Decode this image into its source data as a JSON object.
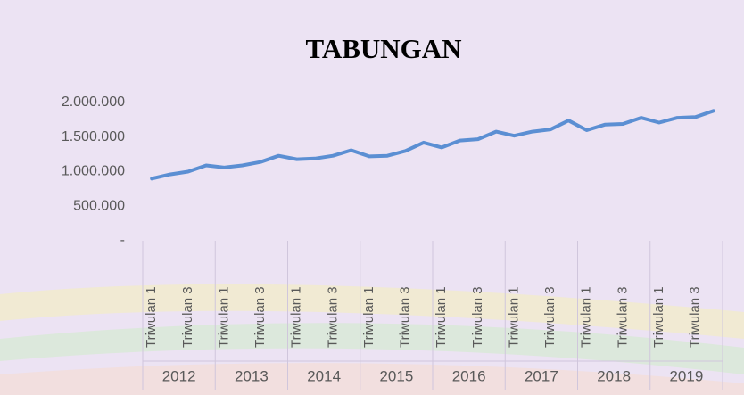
{
  "chart_data": {
    "type": "line",
    "title": "TABUNGAN",
    "categories": [
      "Triwulan 1",
      null,
      "Triwulan 3",
      null,
      "Triwulan 1",
      null,
      "Triwulan 3",
      null,
      "Triwulan 1",
      null,
      "Triwulan 3",
      null,
      "Triwulan 1",
      null,
      "Triwulan 3",
      null,
      "Triwulan 1",
      null,
      "Triwulan 3",
      null,
      "Triwulan 1",
      null,
      "Triwulan 3",
      null,
      "Triwulan 1",
      null,
      "Triwulan 3",
      null,
      "Triwulan 1",
      null,
      "Triwulan 3",
      null
    ],
    "category_groups": [
      "2012",
      "2013",
      "2014",
      "2015",
      "2016",
      "2017",
      "2018",
      "2019"
    ],
    "values": [
      900000,
      960000,
      1000000,
      1090000,
      1060000,
      1090000,
      1140000,
      1230000,
      1180000,
      1190000,
      1230000,
      1310000,
      1220000,
      1230000,
      1300000,
      1420000,
      1350000,
      1450000,
      1470000,
      1580000,
      1520000,
      1580000,
      1610000,
      1740000,
      1600000,
      1680000,
      1690000,
      1780000,
      1710000,
      1780000,
      1790000,
      1880000
    ],
    "color": "#5b8fd3",
    "ylim": [
      0,
      2000000
    ],
    "yticks": [
      {
        "value": 0,
        "label": "-"
      },
      {
        "value": 500000,
        "label": "500.000"
      },
      {
        "value": 1000000,
        "label": "1.000.000"
      },
      {
        "value": 1500000,
        "label": "1.500.000"
      },
      {
        "value": 2000000,
        "label": "2.000.000"
      }
    ],
    "grid": false
  }
}
